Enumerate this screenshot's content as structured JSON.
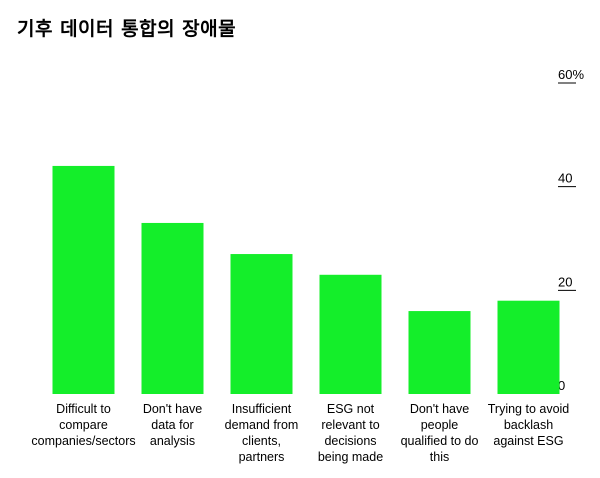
{
  "chart_data": {
    "type": "bar",
    "title": "기후 데이터 통합의 장애물",
    "categories": [
      [
        "Difficult to",
        "compare",
        "companies/sectors"
      ],
      [
        "Don't have",
        "data for",
        "analysis"
      ],
      [
        "Insufficient",
        "demand from",
        "clients,",
        "partners"
      ],
      [
        "ESG not",
        "relevant to",
        "decisions",
        "being made"
      ],
      [
        "Don't have",
        "people",
        "qualified to do",
        "this"
      ],
      [
        "Trying to avoid",
        "backlash",
        "against ESG"
      ]
    ],
    "values": [
      44,
      33,
      27,
      23,
      16,
      18
    ],
    "ylim": [
      0,
      60
    ],
    "yticks": [
      0,
      20,
      40,
      60
    ],
    "y_tick_labels": [
      "0",
      "20",
      "40",
      "60%"
    ],
    "y_axis_position": "right",
    "bar_color": "#14ee2a",
    "grid": false
  }
}
